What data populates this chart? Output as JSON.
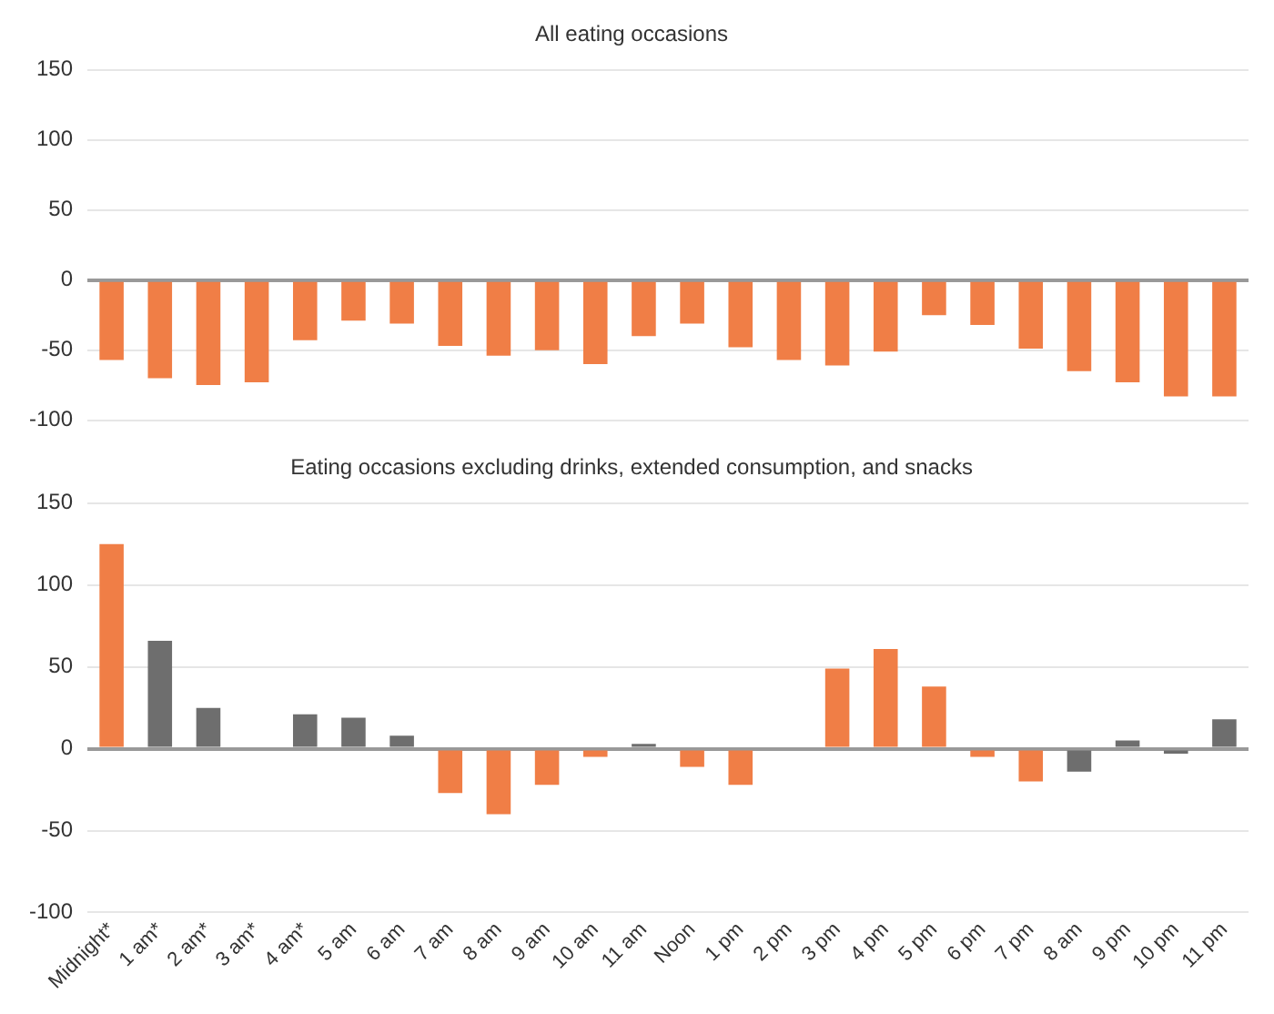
{
  "chart_data": [
    {
      "type": "bar",
      "title": "All eating occasions",
      "categories": [
        null,
        null,
        null,
        null,
        null,
        null,
        null,
        null,
        null,
        null,
        null,
        null,
        null,
        null,
        null,
        null,
        null,
        null,
        null,
        null,
        null,
        null,
        null,
        null
      ],
      "series": [
        {
          "values": [
            -57,
            -70,
            -75,
            -73,
            -43,
            -29,
            -31,
            -47,
            -54,
            -50,
            -60,
            -40,
            -31,
            -48,
            -57,
            -61,
            -51,
            -25,
            -32,
            -49,
            -65,
            -73,
            -83,
            -83
          ],
          "colors": [
            "#f07e46",
            "#f07e46",
            "#f07e46",
            "#f07e46",
            "#f07e46",
            "#f07e46",
            "#f07e46",
            "#f07e46",
            "#f07e46",
            "#f07e46",
            "#f07e46",
            "#f07e46",
            "#f07e46",
            "#f07e46",
            "#f07e46",
            "#f07e46",
            "#f07e46",
            "#f07e46",
            "#f07e46",
            "#f07e46",
            "#f07e46",
            "#f07e46",
            "#f07e46",
            "#f07e46"
          ]
        }
      ],
      "ylim": [
        -100,
        150
      ],
      "yticks": [
        -100,
        -50,
        0,
        50,
        100,
        150
      ],
      "grid": "y",
      "tick_labels": "y"
    },
    {
      "type": "bar",
      "title": "Eating occasions excluding drinks, extended consumption, and snacks",
      "categories": [
        "Midnight*",
        "1 am*",
        "2 am*",
        "3 am*",
        "4 am*",
        "5 am",
        "6 am",
        "7 am",
        "8 am",
        "9 am",
        "10 am",
        "11 am",
        "Noon",
        "1 pm",
        "2 pm",
        "3 pm",
        "4 pm",
        "5 pm",
        "6 pm",
        "7 pm",
        "8 am",
        "9 pm",
        "10 pm",
        "11 pm"
      ],
      "series": [
        {
          "values": [
            125,
            66,
            25,
            0,
            21,
            19,
            8,
            -27,
            -40,
            -22,
            -5,
            3,
            -11,
            -22,
            null,
            49,
            61,
            38,
            -5,
            -20,
            -14,
            5,
            -3,
            18
          ],
          "colors": [
            "#f07e46",
            "#6e6e6e",
            "#6e6e6e",
            "#6e6e6e",
            "#6e6e6e",
            "#6e6e6e",
            "#6e6e6e",
            "#f07e46",
            "#f07e46",
            "#f07e46",
            "#f07e46",
            "#6e6e6e",
            "#f07e46",
            "#f07e46",
            "#6e6e6e",
            "#f07e46",
            "#f07e46",
            "#f07e46",
            "#f07e46",
            "#f07e46",
            "#6e6e6e",
            "#6e6e6e",
            "#6e6e6e",
            "#6e6e6e"
          ]
        }
      ],
      "ylim": [
        -100,
        150
      ],
      "yticks": [
        -100,
        -50,
        0,
        50,
        100,
        150
      ],
      "grid": "y"
    }
  ]
}
